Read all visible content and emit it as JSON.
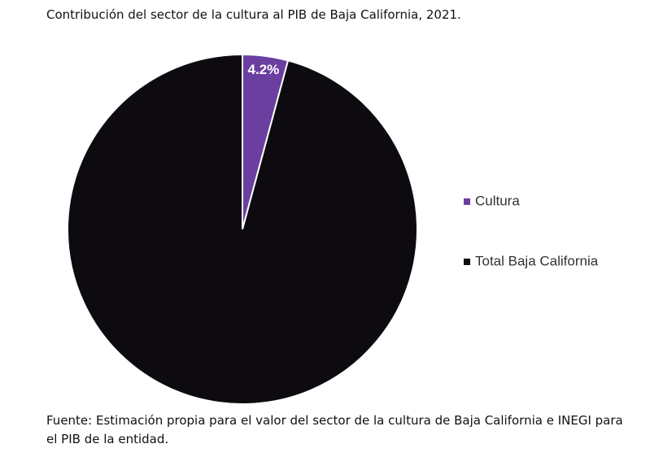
{
  "chart_data": {
    "type": "pie",
    "title": "Contribución del sector de la cultura al PIB de Baja California, 2021.",
    "categories": [
      "Cultura",
      "Total Baja California"
    ],
    "values": [
      4.2,
      95.8
    ],
    "value_labels": [
      "4.2%",
      null
    ],
    "colors": [
      "#6b3fa0",
      "#0d0a10"
    ],
    "legend": "right",
    "source": "Fuente: Estimación propia para el valor del sector de la cultura de Baja California e INEGI para el PIB de la entidad."
  }
}
